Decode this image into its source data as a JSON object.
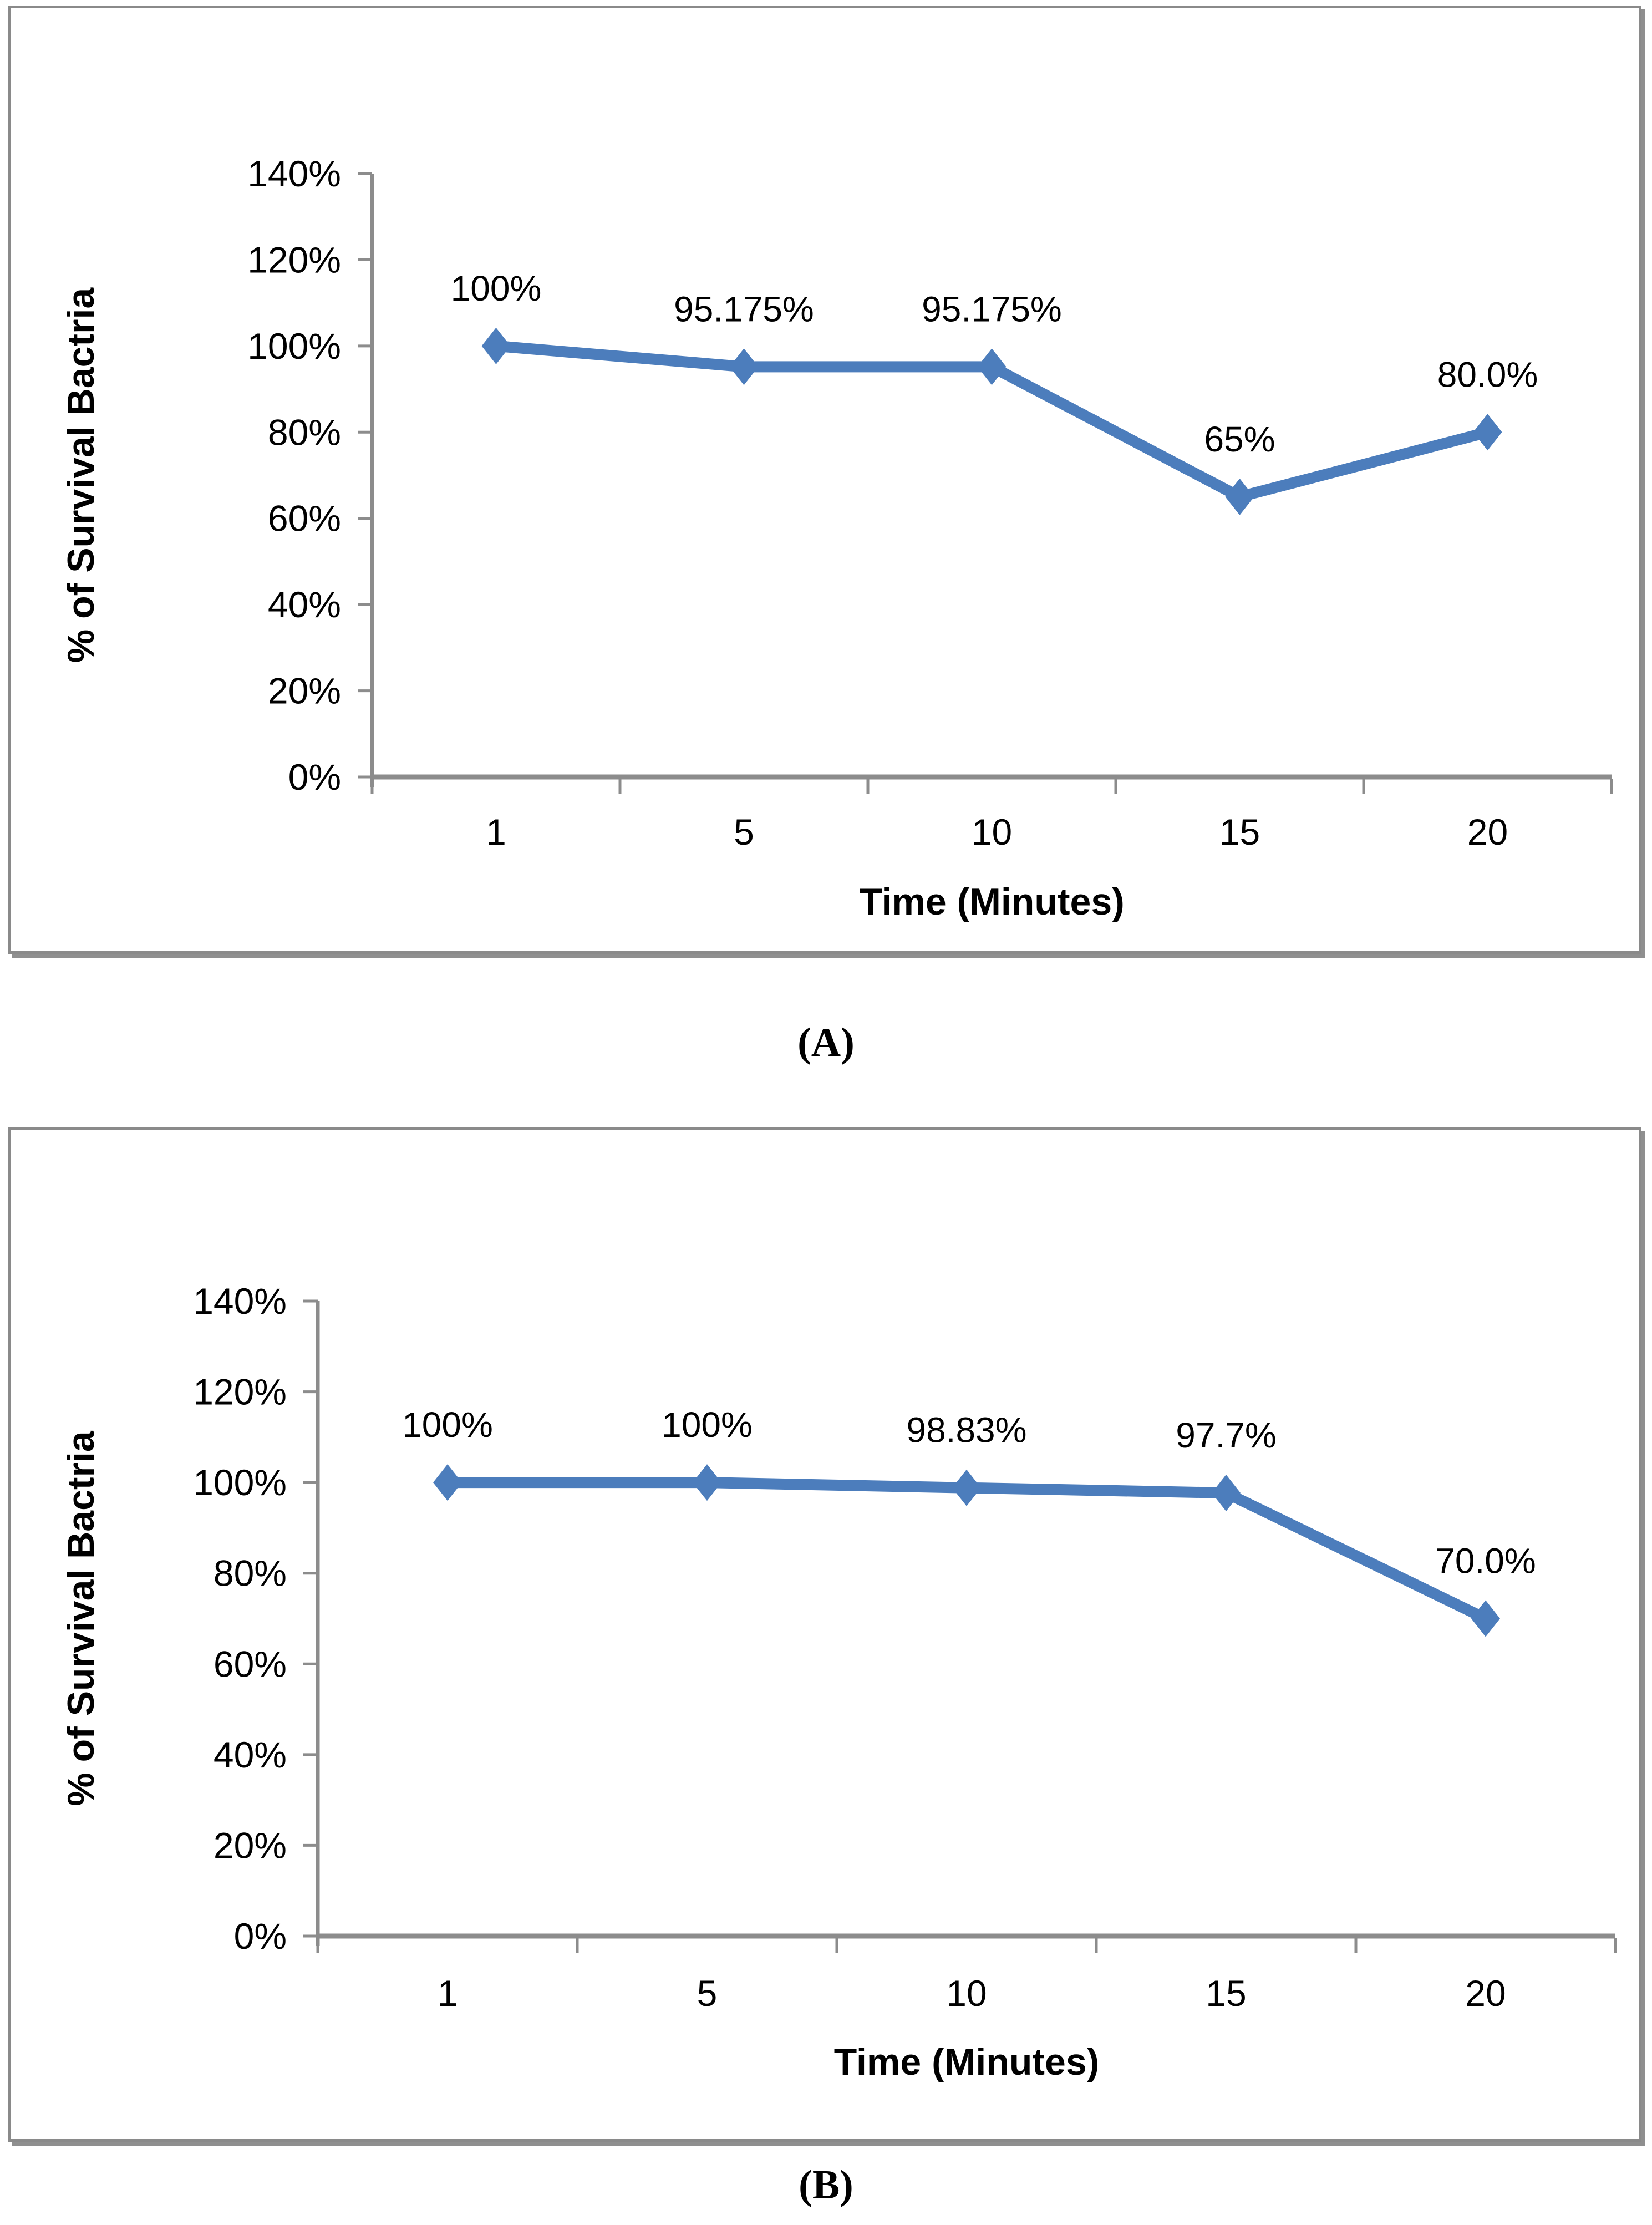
{
  "chart_data": [
    {
      "type": "line",
      "panel_caption": "(A)",
      "title": "",
      "xlabel": "Time (Minutes)",
      "ylabel": "% of Survival Bactria",
      "categories": [
        "1",
        "5",
        "10",
        "15",
        "20"
      ],
      "series": [
        {
          "name": "% of survival bactria",
          "values": [
            100,
            95.175,
            95.175,
            65,
            80
          ]
        }
      ],
      "point_labels": [
        "100%",
        "95.175%",
        "95.175%",
        "65%",
        "80.0%"
      ],
      "ylim": [
        0,
        140
      ],
      "y_tick_values": [
        0,
        20,
        40,
        60,
        80,
        100,
        120,
        140
      ],
      "y_tick_labels": [
        "0%",
        "20%",
        "40%",
        "60%",
        "80%",
        "100%",
        "120%",
        "140%"
      ],
      "grid": false,
      "legend": "none",
      "line_color": "#4C7DBC",
      "axis_color": "#8C8C8C",
      "text_color": "#000000"
    },
    {
      "type": "line",
      "panel_caption": "(B)",
      "title": "",
      "xlabel": "Time (Minutes)",
      "ylabel": "% of Survival Bactria",
      "categories": [
        "1",
        "5",
        "10",
        "15",
        "20"
      ],
      "series": [
        {
          "name": "% of survival bactria",
          "values": [
            100,
            100,
            98.83,
            97.7,
            70
          ]
        }
      ],
      "point_labels": [
        "100%",
        "100%",
        "98.83%",
        "97.7%",
        "70.0%"
      ],
      "ylim": [
        0,
        140
      ],
      "y_tick_values": [
        0,
        20,
        40,
        60,
        80,
        100,
        120,
        140
      ],
      "y_tick_labels": [
        "0%",
        "20%",
        "40%",
        "60%",
        "80%",
        "100%",
        "120%",
        "140%"
      ],
      "grid": false,
      "legend": "none",
      "line_color": "#4C7DBC",
      "axis_color": "#8C8C8C",
      "text_color": "#000000"
    }
  ]
}
